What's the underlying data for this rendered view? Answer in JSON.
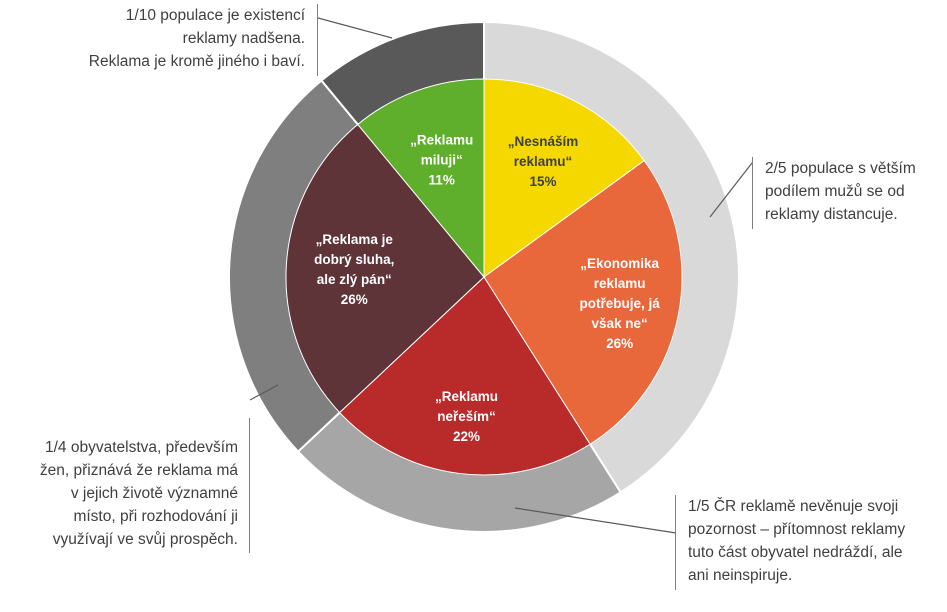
{
  "chart_data": {
    "type": "pie",
    "inner_pie": {
      "slices": [
        {
          "lines": [
            "„Nesnáším",
            "reklamu“"
          ],
          "pct_label": "15%",
          "value": 15,
          "color": "#f5d800",
          "text_color": "#404040"
        },
        {
          "lines": [
            "„Ekonomika",
            "reklamu",
            "potřebuje, já",
            "však ne“"
          ],
          "pct_label": "26%",
          "value": 26,
          "color": "#e8683c",
          "text_color": "#ffffff"
        },
        {
          "lines": [
            "„Reklamu",
            "neřeším“"
          ],
          "pct_label": "22%",
          "value": 22,
          "color": "#b92a2a",
          "text_color": "#ffffff"
        },
        {
          "lines": [
            "„Reklama je",
            "dobrý sluha,",
            "ale zlý pán“"
          ],
          "pct_label": "26%",
          "value": 26,
          "color": "#5e3439",
          "text_color": "#ffffff"
        },
        {
          "lines": [
            "„Reklamu",
            "miluji“"
          ],
          "pct_label": "11%",
          "value": 11,
          "color": "#5faf2d",
          "text_color": "#ffffff"
        }
      ]
    },
    "outer_ring": {
      "segments": [
        {
          "value": 41,
          "color": "#d9d9d9"
        },
        {
          "value": 22,
          "color": "#a6a6a6"
        },
        {
          "value": 26,
          "color": "#7f7f7f"
        },
        {
          "value": 11,
          "color": "#595959"
        }
      ]
    },
    "annotations": [
      {
        "lines": [
          "1/10 populace  je existencí",
          "reklamy nadšena.",
          "Reklama je kromě jiného i baví."
        ]
      },
      {
        "lines": [
          "2/5 populace  s větším",
          "podílem mužů se od",
          "reklamy distancuje."
        ]
      },
      {
        "lines": [
          "1/4 obyvatelstva,  především",
          "žen, přiznává že reklama  má",
          "v jejich životě významné",
          "místo, při rozhodování ji",
          "využívají ve svůj prospěch."
        ]
      },
      {
        "lines": [
          "1/5 ČR reklamě nevěnuje svoji",
          "pozornost – přítomnost  reklamy",
          "tuto část obyvatel nedráždí, ale",
          "ani neinspiruje."
        ]
      }
    ]
  }
}
